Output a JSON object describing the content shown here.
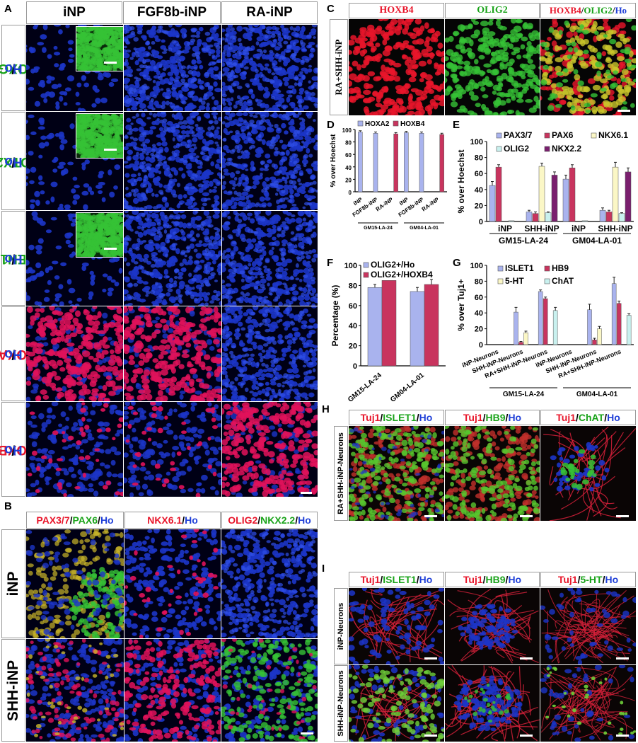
{
  "panel_letters": {
    "A": "A",
    "B": "B",
    "C": "C",
    "D": "D",
    "E": "E",
    "F": "F",
    "G": "G",
    "H": "H",
    "I": "I"
  },
  "panelA": {
    "columns": [
      "iNP",
      "FGF8b-iNP",
      "RA-iNP"
    ],
    "rows": [
      [
        {
          "t": "FOXG1",
          "c": "g"
        },
        {
          "t": "/",
          "c": "k"
        },
        {
          "t": "Ho",
          "c": "b"
        }
      ],
      [
        {
          "t": "OTX2",
          "c": "g"
        },
        {
          "t": "/",
          "c": "k"
        },
        {
          "t": "Ho",
          "c": "b"
        }
      ],
      [
        {
          "t": "EN1",
          "c": "g"
        },
        {
          "t": "/",
          "c": "k"
        },
        {
          "t": "Ho",
          "c": "b"
        }
      ],
      [
        {
          "t": "HOXA2",
          "c": "r"
        },
        {
          "t": "/",
          "c": "k"
        },
        {
          "t": "Ho",
          "c": "b"
        }
      ],
      [
        {
          "t": "HOXB4",
          "c": "r"
        },
        {
          "t": "/",
          "c": "k"
        },
        {
          "t": "Ho",
          "c": "b"
        }
      ]
    ]
  },
  "panelB": {
    "columns": [
      [
        {
          "t": "PAX3/7",
          "c": "r"
        },
        {
          "t": "/",
          "c": "k"
        },
        {
          "t": "PAX6",
          "c": "g"
        },
        {
          "t": "/",
          "c": "k"
        },
        {
          "t": "Ho",
          "c": "b"
        }
      ],
      [
        {
          "t": "NKX6.1",
          "c": "r"
        },
        {
          "t": "/",
          "c": "k"
        },
        {
          "t": "Ho",
          "c": "b"
        }
      ],
      [
        {
          "t": "OLIG2",
          "c": "r"
        },
        {
          "t": "/",
          "c": "k"
        },
        {
          "t": "NKX2.2",
          "c": "g"
        },
        {
          "t": "/",
          "c": "k"
        },
        {
          "t": "Ho",
          "c": "b"
        }
      ]
    ],
    "rows": [
      "iNP",
      "SHH-iNP"
    ]
  },
  "panelC": {
    "columns": [
      [
        {
          "t": "HOXB4",
          "c": "r"
        }
      ],
      [
        {
          "t": "OLIG2",
          "c": "g"
        }
      ],
      [
        {
          "t": "HOXB4",
          "c": "r"
        },
        {
          "t": "/",
          "c": "k"
        },
        {
          "t": "OLIG2",
          "c": "g"
        },
        {
          "t": "/",
          "c": "k"
        },
        {
          "t": "Ho",
          "c": "b"
        }
      ]
    ],
    "row": "RA+SHH-iNP"
  },
  "panelH": {
    "columns": [
      [
        {
          "t": "Tuj1",
          "c": "r"
        },
        {
          "t": "/",
          "c": "k"
        },
        {
          "t": "ISLET1",
          "c": "g"
        },
        {
          "t": "/",
          "c": "k"
        },
        {
          "t": "Ho",
          "c": "b"
        }
      ],
      [
        {
          "t": "Tuj1",
          "c": "r"
        },
        {
          "t": "/",
          "c": "k"
        },
        {
          "t": "HB9",
          "c": "g"
        },
        {
          "t": "/",
          "c": "k"
        },
        {
          "t": "Ho",
          "c": "b"
        }
      ],
      [
        {
          "t": "Tuj1",
          "c": "r"
        },
        {
          "t": "/",
          "c": "k"
        },
        {
          "t": "ChAT",
          "c": "g"
        },
        {
          "t": "/",
          "c": "k"
        },
        {
          "t": "Ho",
          "c": "b"
        }
      ]
    ],
    "row": "RA+SHH-iNP-Neurons"
  },
  "panelI": {
    "columns": [
      [
        {
          "t": "Tuj1",
          "c": "r"
        },
        {
          "t": "/",
          "c": "k"
        },
        {
          "t": "ISLET1",
          "c": "g"
        },
        {
          "t": "/",
          "c": "k"
        },
        {
          "t": "Ho",
          "c": "b"
        }
      ],
      [
        {
          "t": "Tuj1",
          "c": "r"
        },
        {
          "t": "/",
          "c": "k"
        },
        {
          "t": "HB9",
          "c": "g"
        },
        {
          "t": "/",
          "c": "k"
        },
        {
          "t": "Ho",
          "c": "b"
        }
      ],
      [
        {
          "t": "Tuj1",
          "c": "r"
        },
        {
          "t": "/",
          "c": "k"
        },
        {
          "t": "5-HT",
          "c": "g"
        },
        {
          "t": "/",
          "c": "k"
        },
        {
          "t": "Ho",
          "c": "b"
        }
      ]
    ],
    "rows": [
      "iNP-Neurons",
      "SHH-iNP-Neurons"
    ]
  },
  "colors": {
    "red": "#e8152a",
    "green": "#19a319",
    "blue": "#1f3fd8",
    "hoechst": "#1530c8",
    "stain_red": "#e0125a",
    "stain_green": "#36c236"
  },
  "chart_data": [
    {
      "id": "D",
      "type": "bar",
      "ylabel": "% over Hoechst",
      "ylim": [
        0,
        100
      ],
      "yticks": [
        0,
        20,
        40,
        60,
        80,
        100
      ],
      "categories": [
        "iNP",
        "FGF8b-iNP",
        "RA-iNP",
        "iNP",
        "FGF8b-iNP",
        "RA-iNP"
      ],
      "groups": [
        {
          "label": "GM15-LA-24",
          "span": [
            0,
            2
          ]
        },
        {
          "label": "GM04-LA-01",
          "span": [
            3,
            5
          ]
        }
      ],
      "series": [
        {
          "name": "HOXA2",
          "color": "#a9b3ee",
          "values": [
            96,
            94,
            0,
            95,
            94,
            0
          ],
          "errors": [
            2,
            2,
            0,
            2,
            2,
            0
          ]
        },
        {
          "name": "HOXB4",
          "color": "#c8345e",
          "values": [
            0,
            0,
            93,
            0,
            0,
            92
          ],
          "errors": [
            0,
            0,
            2,
            0,
            0,
            2
          ]
        }
      ]
    },
    {
      "id": "E",
      "type": "bar",
      "ylabel": "% over Hoechst",
      "ylim": [
        0,
        100
      ],
      "yticks": [
        0,
        20,
        40,
        60,
        80,
        100
      ],
      "categories": [
        "iNP",
        "SHH-iNP",
        "iNP",
        "SHH-iNP"
      ],
      "groups": [
        {
          "label": "GM15-LA-24",
          "span": [
            0,
            1
          ]
        },
        {
          "label": "GM04-LA-01",
          "span": [
            2,
            3
          ]
        }
      ],
      "series": [
        {
          "name": "PAX3/7",
          "color": "#a9b3ee",
          "values": [
            45,
            12,
            53,
            14
          ],
          "errors": [
            5,
            2,
            5,
            3
          ]
        },
        {
          "name": "PAX6",
          "color": "#c8345e",
          "values": [
            68,
            10,
            67,
            12
          ],
          "errors": [
            3,
            2,
            4,
            2
          ]
        },
        {
          "name": "NKX6.1",
          "color": "#fbf7c6",
          "values": [
            0,
            69,
            0,
            68
          ],
          "errors": [
            0,
            4,
            0,
            6
          ]
        },
        {
          "name": "OLIG2",
          "color": "#c9f1ef",
          "values": [
            1,
            11,
            1,
            10
          ],
          "errors": [
            0,
            1,
            0,
            1
          ]
        },
        {
          "name": "NKX2.2",
          "color": "#7a1f6e",
          "values": [
            0,
            58,
            0,
            62
          ],
          "errors": [
            0,
            4,
            0,
            5
          ]
        }
      ]
    },
    {
      "id": "F",
      "type": "bar",
      "ylabel": "Percentage (%)",
      "ylim": [
        0,
        100
      ],
      "yticks": [
        0,
        20,
        40,
        60,
        80,
        100
      ],
      "categories": [
        "GM15-LA-24",
        "GM04-LA-01"
      ],
      "series": [
        {
          "name": "OLIG2+/Ho",
          "color": "#a9b3ee",
          "values": [
            78,
            74
          ],
          "errors": [
            3,
            4
          ]
        },
        {
          "name": "OLIG2+/HOXB4",
          "color": "#c8345e",
          "values": [
            85,
            81
          ],
          "errors": [
            0,
            5
          ]
        }
      ]
    },
    {
      "id": "G",
      "type": "bar",
      "ylabel": "% over Tuj1+",
      "ylim": [
        0,
        100
      ],
      "yticks": [
        0,
        20,
        40,
        60,
        80,
        100
      ],
      "categories": [
        "iNP-Neurons",
        "SHH-iNP-Neurons",
        "RA+SHH-iNP-Neurons",
        "iNP-Neurons",
        "SHH-iNP-Neurons",
        "RA+SHH-iNP-Neurons"
      ],
      "groups": [
        {
          "label": "GM15-LA-24",
          "span": [
            0,
            2
          ]
        },
        {
          "label": "GM04-LA-01",
          "span": [
            3,
            5
          ]
        }
      ],
      "series": [
        {
          "name": "ISLET1",
          "color": "#a9b3ee",
          "values": [
            0,
            41,
            67,
            0,
            44,
            77
          ],
          "errors": [
            0,
            6,
            2,
            0,
            7,
            8
          ]
        },
        {
          "name": "HB9",
          "color": "#c8345e",
          "values": [
            0,
            3,
            58,
            0,
            6,
            52
          ],
          "errors": [
            0,
            1,
            2,
            0,
            2,
            3
          ]
        },
        {
          "name": "5-HT",
          "color": "#fbf7c6",
          "values": [
            0,
            15,
            0,
            0,
            20,
            0
          ],
          "errors": [
            0,
            2,
            0,
            0,
            3,
            0
          ]
        },
        {
          "name": "ChAT",
          "color": "#c9f1ef",
          "values": [
            0,
            0,
            43,
            0,
            0,
            37
          ],
          "errors": [
            0,
            0,
            4,
            0,
            0,
            2
          ]
        }
      ]
    }
  ]
}
